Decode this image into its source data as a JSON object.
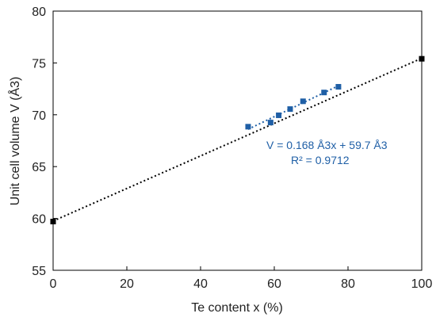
{
  "chart_data": {
    "type": "scatter",
    "xlabel": "Te content x (%)",
    "ylabel": "Unit cell volume V (Å3)",
    "xlim": [
      0,
      100
    ],
    "ylim": [
      55,
      80
    ],
    "x_ticks": [
      0,
      20,
      40,
      60,
      80,
      100
    ],
    "y_ticks": [
      55,
      60,
      65,
      70,
      75,
      80
    ],
    "grid": false,
    "series": [
      {
        "color": "#000000",
        "marker": "square",
        "points": [
          [
            0,
            59.7
          ],
          [
            100,
            75.4
          ]
        ],
        "trendline": {
          "style": "dotted",
          "from": [
            0,
            59.75
          ],
          "to": [
            100,
            75.45
          ]
        }
      },
      {
        "color": "#1f5fa6",
        "marker": "square",
        "points": [
          [
            52.9,
            68.85
          ],
          [
            59.0,
            69.25
          ],
          [
            61.2,
            69.95
          ],
          [
            64.3,
            70.55
          ],
          [
            67.8,
            71.3
          ],
          [
            73.5,
            72.15
          ],
          [
            77.4,
            72.7
          ]
        ],
        "trendline": {
          "style": "dotted",
          "from": [
            52.9,
            68.6
          ],
          "to": [
            77.4,
            72.8
          ]
        }
      }
    ],
    "annotations": [
      {
        "text": "V = 0.168 Å3x + 59.7 Å3",
        "color": "#1f5fa6"
      },
      {
        "text": "R² = 0.9712",
        "color": "#1f5fa6"
      }
    ]
  }
}
